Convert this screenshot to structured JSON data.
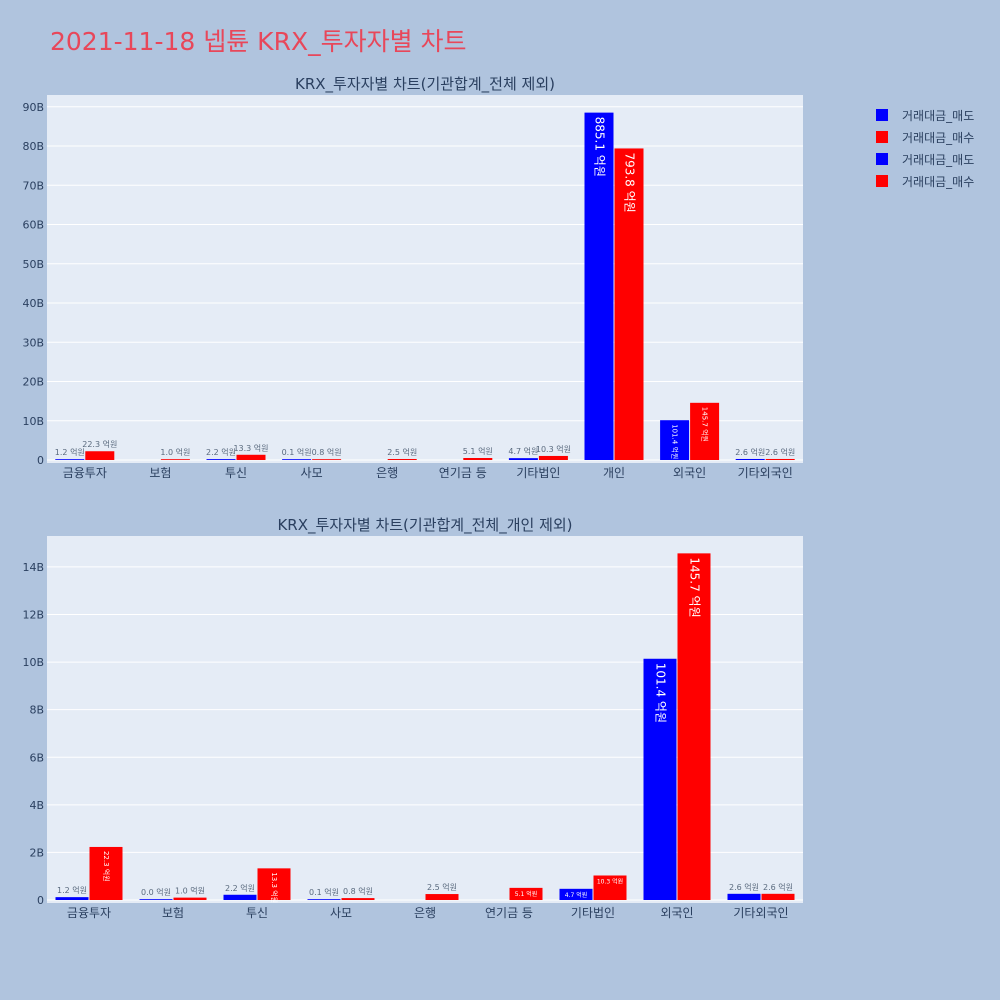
{
  "title": "2021-11-18 넵튠 KRX_투자자별 차트",
  "colors": {
    "sell": "#0000ff",
    "buy": "#ff0000",
    "plot_bg": "#e5ecf6",
    "page_bg": "#b0c4de",
    "title": "#e8475a",
    "text": "#2a3f5f"
  },
  "legend": [
    {
      "label": "거래대금_매도",
      "color": "#0000ff"
    },
    {
      "label": "거래대금_매수",
      "color": "#ff0000"
    },
    {
      "label": "거래대금_매도",
      "color": "#0000ff"
    },
    {
      "label": "거래대금_매수",
      "color": "#ff0000"
    }
  ],
  "chart_data": [
    {
      "type": "bar",
      "title": "KRX_투자자별 차트(기관합계_전체 제외)",
      "categories": [
        "금융투자",
        "보험",
        "투신",
        "사모",
        "은행",
        "연기금 등",
        "기타법인",
        "개인",
        "외국인",
        "기타외국인"
      ],
      "yticks": [
        "0",
        "10B",
        "20B",
        "30B",
        "40B",
        "50B",
        "60B",
        "70B",
        "80B",
        "90B"
      ],
      "ylim": [
        0,
        93
      ],
      "unit": "B",
      "series": [
        {
          "name": "거래대금_매도",
          "color": "#0000ff",
          "values": [
            0.12,
            null,
            0.22,
            0.01,
            null,
            null,
            0.47,
            88.51,
            10.14,
            0.26
          ],
          "labels": [
            "1.2 억원",
            "",
            "2.2 억원",
            "0.1 억원",
            "",
            "",
            "4.7 억원",
            "885.1 억원",
            "101.4 억원",
            "2.6 억원"
          ]
        },
        {
          "name": "거래대금_매수",
          "color": "#ff0000",
          "values": [
            2.23,
            0.1,
            1.33,
            0.08,
            0.25,
            0.51,
            1.03,
            79.38,
            14.57,
            0.26
          ],
          "labels": [
            "22.3 억원",
            "1.0 억원",
            "13.3 억원",
            "0.8 억원",
            "2.5 억원",
            "5.1 억원",
            "10.3 억원",
            "793.8 억원",
            "145.7 억원",
            "2.6 억원"
          ]
        }
      ]
    },
    {
      "type": "bar",
      "title": "KRX_투자자별 차트(기관합계_전체_개인 제외)",
      "categories": [
        "금융투자",
        "보험",
        "투신",
        "사모",
        "은행",
        "연기금 등",
        "기타법인",
        "외국인",
        "기타외국인"
      ],
      "yticks": [
        "0",
        "2B",
        "4B",
        "6B",
        "8B",
        "10B",
        "12B",
        "14B"
      ],
      "ylim": [
        0,
        15.3
      ],
      "unit": "B",
      "series": [
        {
          "name": "거래대금_매도",
          "color": "#0000ff",
          "values": [
            0.12,
            0.0,
            0.22,
            0.01,
            null,
            null,
            0.47,
            10.14,
            0.26
          ],
          "labels": [
            "1.2 억원",
            "0.0 억원",
            "2.2 억원",
            "0.1 억원",
            "",
            "",
            "4.7 억원",
            "101.4 억원",
            "2.6 억원"
          ]
        },
        {
          "name": "거래대금_매수",
          "color": "#ff0000",
          "values": [
            2.23,
            0.1,
            1.33,
            0.08,
            0.25,
            0.51,
            1.03,
            14.57,
            0.26
          ],
          "labels": [
            "22.3 억원",
            "1.0 억원",
            "13.3 억원",
            "0.8 억원",
            "2.5 억원",
            "5.1 억원",
            "10.3 억원",
            "145.7 억원",
            "2.6 억원"
          ]
        }
      ]
    }
  ]
}
